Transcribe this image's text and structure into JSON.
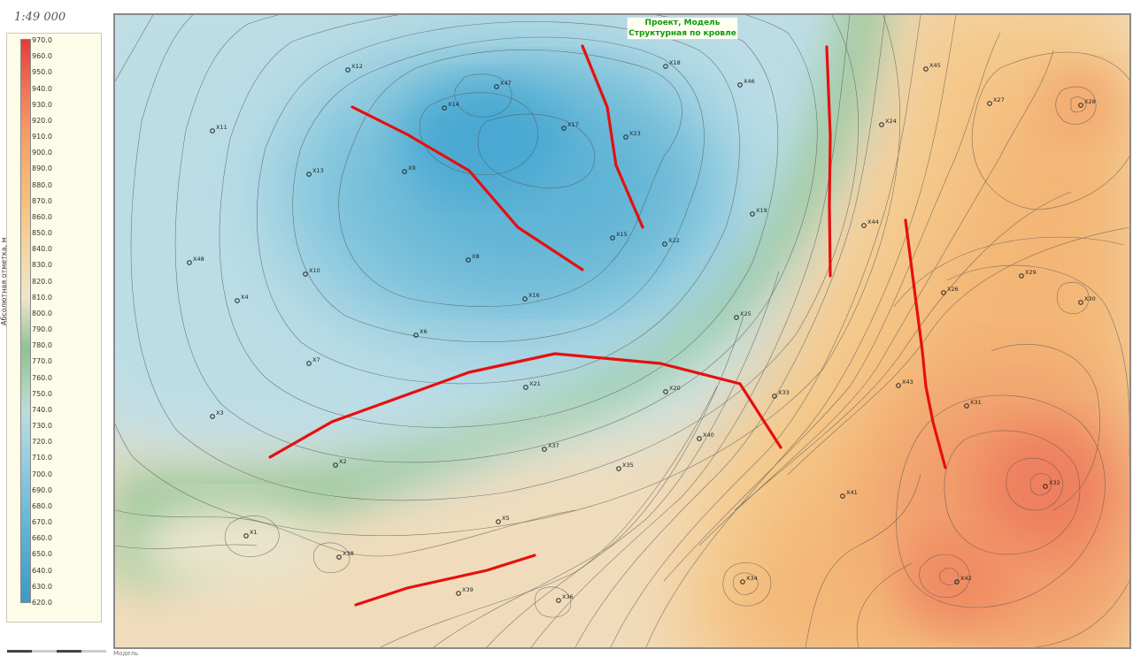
{
  "scale_text": "1:49 000",
  "title": {
    "line1": "Проект, Модель",
    "line2": "Структурная по кровле"
  },
  "legend": {
    "title": "Абсолютная отметка, м",
    "ticks": [
      "970.0",
      "960.0",
      "950.0",
      "940.0",
      "930.0",
      "920.0",
      "910.0",
      "900.0",
      "890.0",
      "880.0",
      "870.0",
      "860.0",
      "850.0",
      "840.0",
      "830.0",
      "820.0",
      "810.0",
      "800.0",
      "790.0",
      "780.0",
      "770.0",
      "760.0",
      "750.0",
      "740.0",
      "730.0",
      "720.0",
      "710.0",
      "700.0",
      "690.0",
      "680.0",
      "670.0",
      "660.0",
      "650.0",
      "640.0",
      "630.0",
      "620.0"
    ]
  },
  "bottom_label": "Модель",
  "colors": {
    "fault": "#e60f0f",
    "contour": "#555555",
    "low": "#4aa8d2",
    "mid_green": "#8dbf93",
    "high": "#ef7b5c"
  },
  "wells": [
    {
      "name": "X12"
    },
    {
      "name": "X11"
    },
    {
      "name": "X47"
    },
    {
      "name": "X14"
    },
    {
      "name": "X18"
    },
    {
      "name": "X17"
    },
    {
      "name": "X23"
    },
    {
      "name": "X46"
    },
    {
      "name": "X45"
    },
    {
      "name": "X27"
    },
    {
      "name": "X28"
    },
    {
      "name": "X24"
    },
    {
      "name": "X13"
    },
    {
      "name": "X9"
    },
    {
      "name": "X19"
    },
    {
      "name": "X44"
    },
    {
      "name": "X15"
    },
    {
      "name": "X22"
    },
    {
      "name": "X48"
    },
    {
      "name": "X8"
    },
    {
      "name": "X10"
    },
    {
      "name": "X4"
    },
    {
      "name": "X16"
    },
    {
      "name": "X29"
    },
    {
      "name": "X26"
    },
    {
      "name": "X30"
    },
    {
      "name": "X25"
    },
    {
      "name": "X6"
    },
    {
      "name": "X7"
    },
    {
      "name": "X21"
    },
    {
      "name": "X20"
    },
    {
      "name": "X33"
    },
    {
      "name": "X43"
    },
    {
      "name": "X31"
    },
    {
      "name": "X3"
    },
    {
      "name": "X40"
    },
    {
      "name": "X37"
    },
    {
      "name": "X2"
    },
    {
      "name": "X35"
    },
    {
      "name": "X32"
    },
    {
      "name": "X41"
    },
    {
      "name": "X5"
    },
    {
      "name": "X1"
    },
    {
      "name": "X38"
    },
    {
      "name": "X34"
    },
    {
      "name": "X42"
    },
    {
      "name": "X39"
    },
    {
      "name": "X36"
    }
  ]
}
